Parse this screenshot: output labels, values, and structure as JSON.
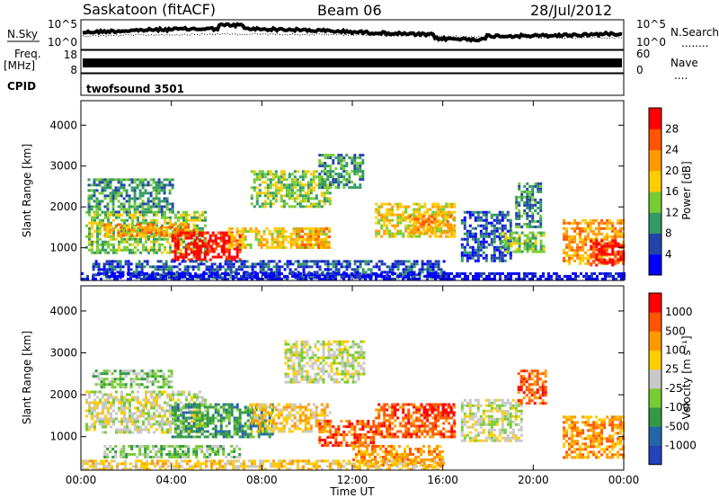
{
  "header": {
    "station": "Saskatoon (fitACF)",
    "beam": "Beam 06",
    "date": "28/Jul/2012"
  },
  "left_labels": {
    "nsky": "N.Sky",
    "freq_a": "Freq.",
    "freq_b": "[MHz]",
    "cpid": "CPID"
  },
  "right_labels": {
    "nsearch": "N.Search",
    "nsearch_dots": "........",
    "nave": "Nave",
    "nave_dots": "...."
  },
  "cpid_name": "twofsound 3501",
  "strip_ticks": {
    "nsky_top": "10^5",
    "nsky_bottom": "10^0",
    "nsearch_top": "10^5",
    "nsearch_bottom": "10^0",
    "freq_top": "18",
    "freq_bottom": "8",
    "nave_top": "60",
    "nave_bottom": "0"
  },
  "colors": {
    "red": "#ff0000",
    "orange_red": "#ff5500",
    "orange": "#ff9900",
    "yellow": "#ffcc00",
    "green_light": "#77cc33",
    "green": "#339944",
    "gray": "#c8c8c8",
    "blue_dark": "#2244aa",
    "blue": "#0000ff"
  },
  "chart_data": [
    {
      "type": "heatmap",
      "name": "power",
      "ylabel": "Slant Range [km]",
      "ylim": [
        200,
        4600
      ],
      "yticks": [
        "1000",
        "2000",
        "3000",
        "4000"
      ],
      "xlim": [
        0,
        24
      ],
      "colorbar": {
        "label": "Power [dB]",
        "ticks": [
          "4",
          "8",
          "12",
          "16",
          "20",
          "24",
          "28"
        ],
        "scale": [
          "#0000ff",
          "#2244aa",
          "#339966",
          "#77cc33",
          "#ffcc00",
          "#ff9900",
          "#ff5500",
          "#ff0000"
        ]
      },
      "regions": [
        {
          "x0": 0.2,
          "x1": 5.5,
          "y0": 900,
          "y1": 1900,
          "c": 3
        },
        {
          "x0": 1.0,
          "x1": 5.0,
          "y0": 1300,
          "y1": 1600,
          "c": 5
        },
        {
          "x0": 4.0,
          "x1": 7.0,
          "y0": 700,
          "y1": 1400,
          "c": 7
        },
        {
          "x0": 5.0,
          "x1": 6.5,
          "y0": 900,
          "y1": 1200,
          "c": 7
        },
        {
          "x0": 6.5,
          "x1": 11.0,
          "y0": 1000,
          "y1": 1500,
          "c": 4
        },
        {
          "x0": 9.5,
          "x1": 11.0,
          "y0": 1000,
          "y1": 1500,
          "c": 5
        },
        {
          "x0": 0.3,
          "x1": 4.0,
          "y0": 1900,
          "y1": 2700,
          "c": 2
        },
        {
          "x0": 7.5,
          "x1": 11.0,
          "y0": 2000,
          "y1": 2900,
          "c": 3
        },
        {
          "x0": 10.5,
          "x1": 12.5,
          "y0": 2500,
          "y1": 3300,
          "c": 2
        },
        {
          "x0": 13.0,
          "x1": 16.5,
          "y0": 1300,
          "y1": 2100,
          "c": 4
        },
        {
          "x0": 14.5,
          "x1": 16.5,
          "y0": 1400,
          "y1": 1800,
          "c": 5
        },
        {
          "x0": 16.8,
          "x1": 19.0,
          "y0": 700,
          "y1": 1900,
          "c": 1
        },
        {
          "x0": 18.5,
          "x1": 20.5,
          "y0": 900,
          "y1": 1400,
          "c": 3
        },
        {
          "x0": 19.2,
          "x1": 20.3,
          "y0": 1500,
          "y1": 2600,
          "c": 2
        },
        {
          "x0": 21.3,
          "x1": 24.0,
          "y0": 600,
          "y1": 1700,
          "c": 5
        },
        {
          "x0": 22.5,
          "x1": 24.0,
          "y0": 600,
          "y1": 1200,
          "c": 7
        },
        {
          "x0": 0.5,
          "x1": 16.0,
          "y0": 300,
          "y1": 700,
          "c": 1
        },
        {
          "x0": 0.0,
          "x1": 24.0,
          "y0": 250,
          "y1": 400,
          "c": 0
        }
      ]
    },
    {
      "type": "heatmap",
      "name": "velocity",
      "ylabel": "Slant Range [km]",
      "ylim": [
        200,
        4600
      ],
      "yticks": [
        "1000",
        "2000",
        "3000",
        "4000"
      ],
      "xlim": [
        0,
        24
      ],
      "xlabel": "Time UT",
      "xticks": [
        "00:00",
        "04:00",
        "08:00",
        "12:00",
        "16:00",
        "20:00",
        "00:00"
      ],
      "colorbar": {
        "label": "Velocity [m s⁻¹]",
        "ticks": [
          "1000",
          "500",
          "100",
          "25",
          "-25",
          "-100",
          "-500",
          "-1000"
        ],
        "scale": [
          "#2244bb",
          "#2266aa",
          "#339944",
          "#77cc33",
          "#c8c8c8",
          "#ffcc00",
          "#ff9900",
          "#ff5500",
          "#ff0000"
        ]
      },
      "regions": [
        {
          "x0": 0.2,
          "x1": 5.5,
          "y0": 1100,
          "y1": 2100,
          "c": 4
        },
        {
          "x0": 0.5,
          "x1": 4.0,
          "y0": 2200,
          "y1": 2600,
          "c": 3
        },
        {
          "x0": 4.0,
          "x1": 8.5,
          "y0": 1000,
          "y1": 1800,
          "c": 2
        },
        {
          "x0": 7.5,
          "x1": 11.0,
          "y0": 1100,
          "y1": 1800,
          "c": 5
        },
        {
          "x0": 9.0,
          "x1": 12.5,
          "y0": 2300,
          "y1": 3300,
          "c": 4
        },
        {
          "x0": 10.5,
          "x1": 13.0,
          "y0": 800,
          "y1": 1400,
          "c": 7
        },
        {
          "x0": 13.0,
          "x1": 16.5,
          "y0": 1000,
          "y1": 1800,
          "c": 7
        },
        {
          "x0": 15.0,
          "x1": 16.5,
          "y0": 1500,
          "y1": 1800,
          "c": 8
        },
        {
          "x0": 12.0,
          "x1": 16.0,
          "y0": 300,
          "y1": 800,
          "c": 6
        },
        {
          "x0": 16.8,
          "x1": 19.5,
          "y0": 900,
          "y1": 1900,
          "c": 4
        },
        {
          "x0": 19.3,
          "x1": 20.5,
          "y0": 1800,
          "y1": 2600,
          "c": 7
        },
        {
          "x0": 21.3,
          "x1": 24.0,
          "y0": 500,
          "y1": 1500,
          "c": 6
        },
        {
          "x0": 1.0,
          "x1": 7.0,
          "y0": 500,
          "y1": 800,
          "c": 3
        },
        {
          "x0": 0.0,
          "x1": 16.0,
          "y0": 250,
          "y1": 450,
          "c": 5
        }
      ]
    }
  ]
}
